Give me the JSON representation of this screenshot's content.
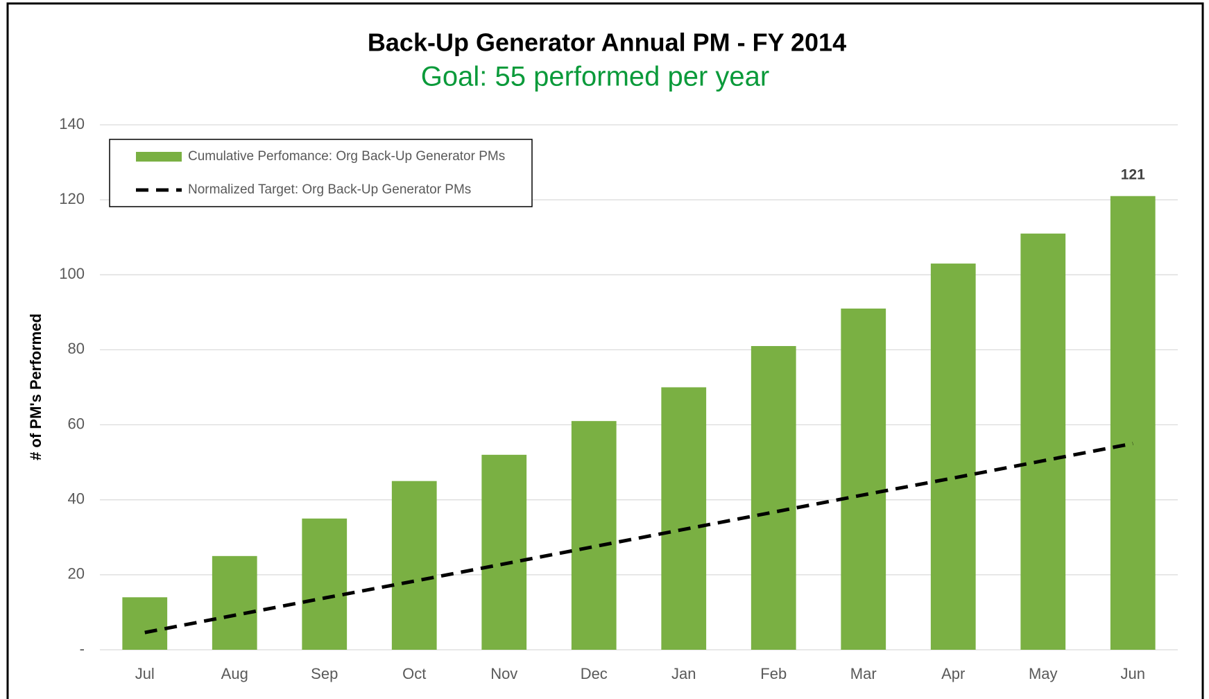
{
  "chart_data": {
    "type": "bar",
    "title": "Back-Up Generator Annual PM - FY 2014",
    "subtitle": "Goal: 55 performed per year",
    "y_label": "# of PM's Performed",
    "categories": [
      "Jul",
      "Aug",
      "Sep",
      "Oct",
      "Nov",
      "Dec",
      "Jan",
      "Feb",
      "Mar",
      "Apr",
      "May",
      "Jun"
    ],
    "series": [
      {
        "name": "Cumulative Perfomance: Org Back-Up Generator PMs",
        "type": "bar",
        "color": "#7ab043",
        "values": [
          14,
          25,
          35,
          45,
          52,
          61,
          70,
          81,
          91,
          103,
          111,
          121
        ],
        "value_labels": [
          null,
          null,
          null,
          null,
          null,
          null,
          null,
          null,
          null,
          null,
          null,
          "121"
        ]
      },
      {
        "name": "Normalized Target: Org Back-Up Generator PMs",
        "type": "line",
        "color": "#000000",
        "dashed": true,
        "values": [
          4.6,
          9.2,
          13.8,
          18.3,
          22.9,
          27.5,
          32.1,
          36.7,
          41.3,
          45.8,
          50.4,
          55
        ]
      }
    ],
    "ylim": [
      0,
      140
    ],
    "yticks": [
      {
        "value": 0,
        "label": "-"
      },
      20,
      40,
      60,
      80,
      100,
      120,
      140
    ],
    "grid": true,
    "legend": "top-left"
  }
}
